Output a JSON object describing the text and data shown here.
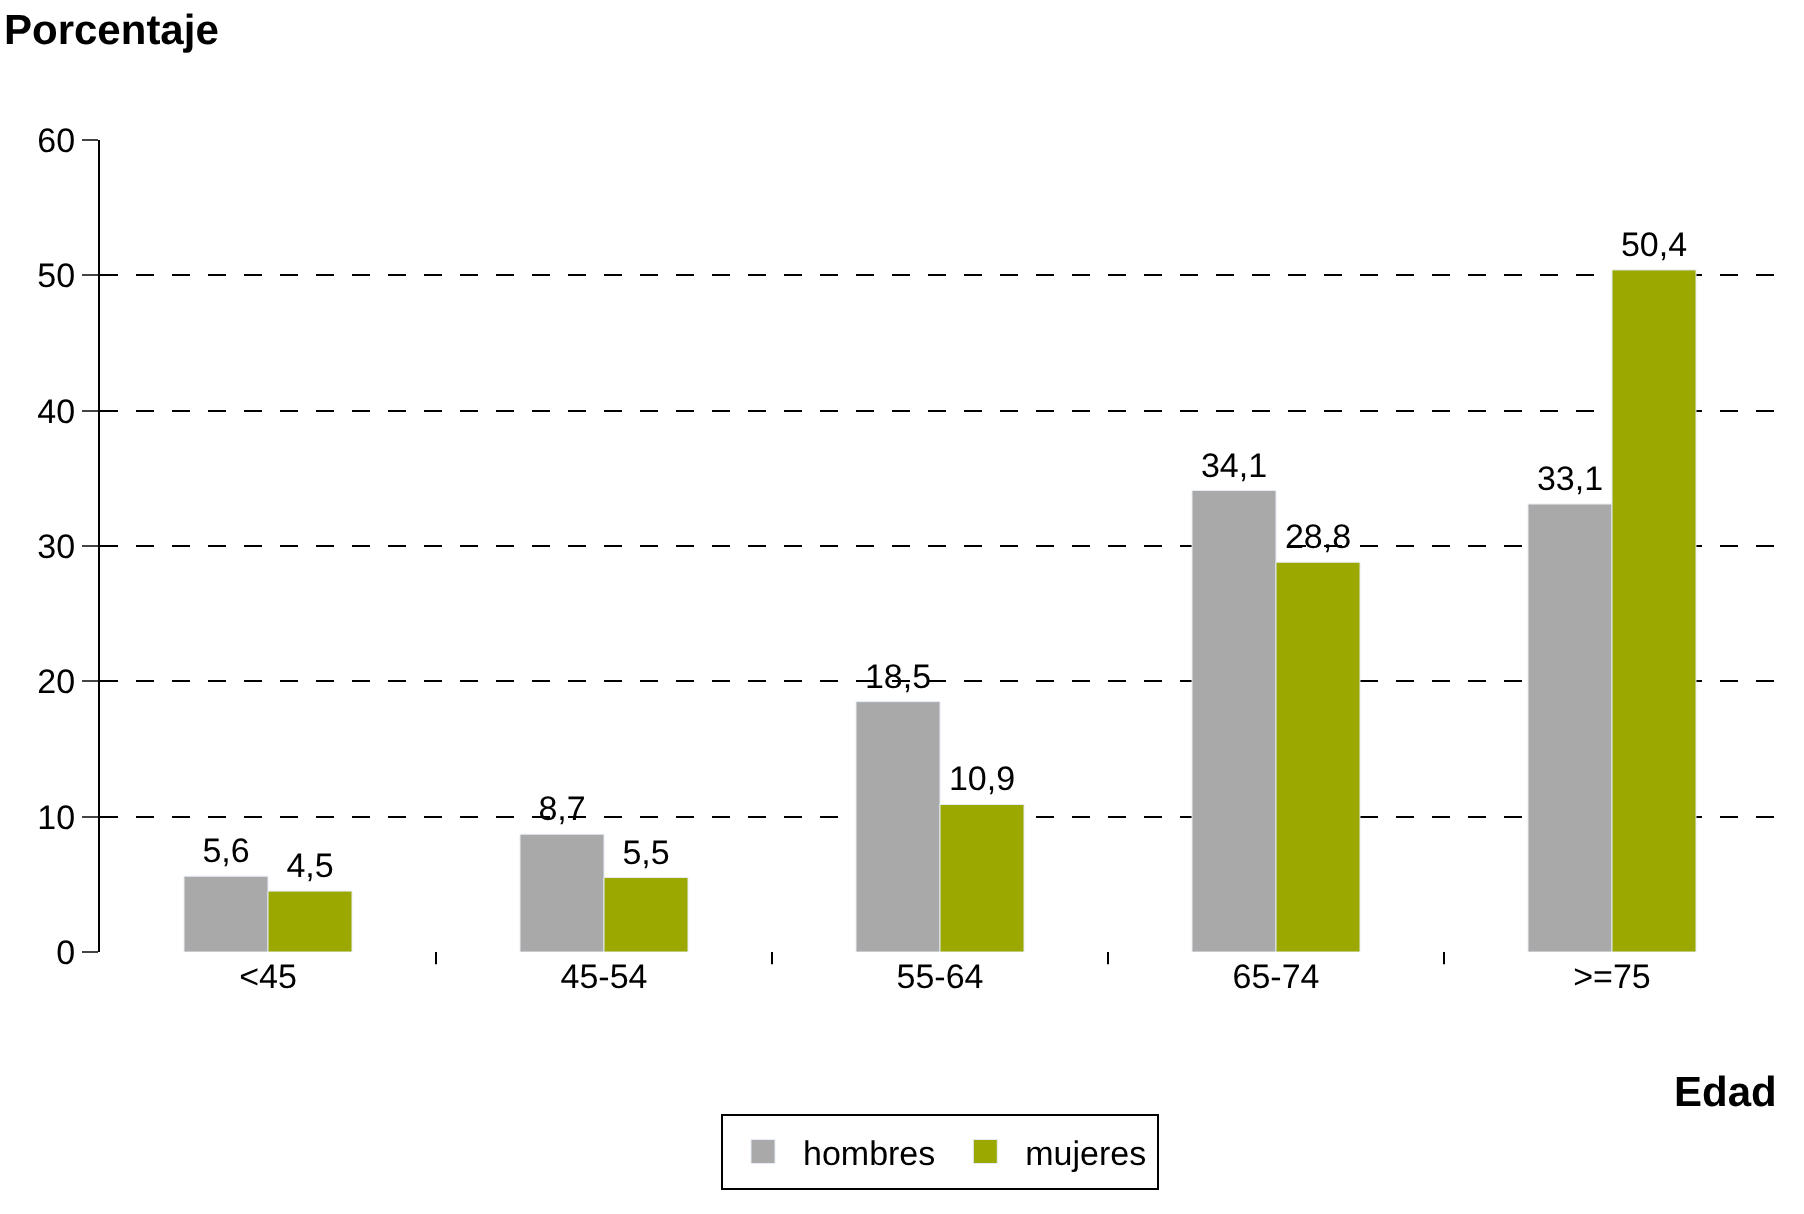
{
  "chart_data": {
    "type": "bar",
    "xlabel": "Edad",
    "ylabel": "Porcentaje",
    "categories": [
      "<45",
      "45-54",
      "55-64",
      "65-74",
      ">=75"
    ],
    "series": [
      {
        "name": "hombres",
        "color": "#a9a9a9",
        "values": [
          5.6,
          8.7,
          18.5,
          34.1,
          33.1
        ],
        "value_labels": [
          "5,6",
          "8,7",
          "18,5",
          "34,1",
          "33,1"
        ]
      },
      {
        "name": "mujeres",
        "color": "#9aa800",
        "values": [
          4.5,
          5.5,
          10.9,
          28.8,
          50.4
        ],
        "value_labels": [
          "4,5",
          "5,5",
          "10,9",
          "28,8",
          "50,4"
        ]
      }
    ],
    "ylim": [
      0,
      60
    ],
    "yticks": [
      0,
      10,
      20,
      30,
      40,
      50,
      60
    ],
    "grid": "y",
    "legend": "bottom"
  }
}
